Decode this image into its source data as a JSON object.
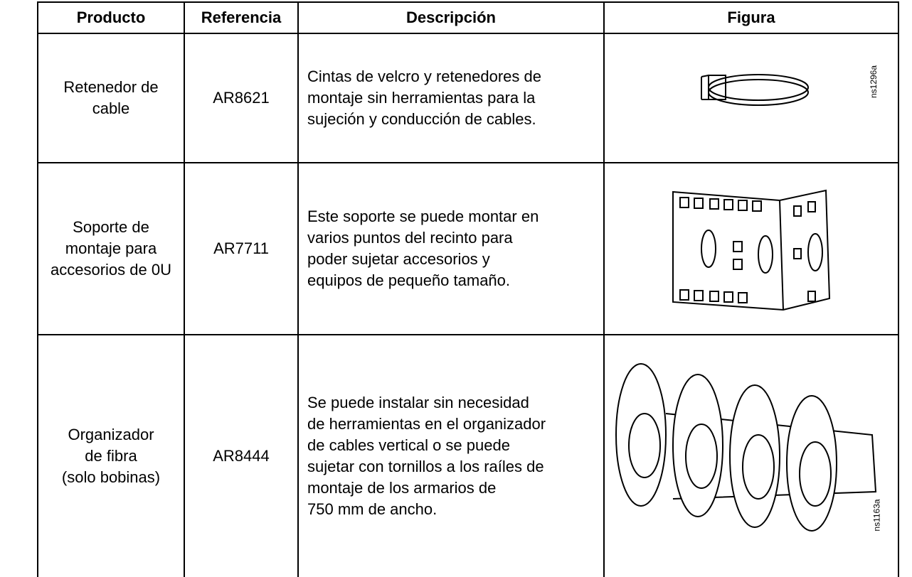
{
  "table": {
    "header": [
      "Producto",
      "Referencia",
      "Descripción",
      "Figura"
    ],
    "rows": [
      {
        "product": "Retenedor de\ncable",
        "reference": "AR8621",
        "description": "Cintas de velcro y retenedores de\nmontaje sin herramientas para la\nsujeción y conducción de cables.",
        "figure_label": "ns1296a"
      },
      {
        "product": "Soporte de\nmontaje para\naccesorios de 0U",
        "reference": "AR7711",
        "description": "Este soporte se puede montar en\nvarios puntos del recinto para\npoder sujetar accesorios y\nequipos de pequeño tamaño."
      },
      {
        "product": "Organizador\nde fibra\n(solo bobinas)",
        "reference": "AR8444",
        "description": "Se puede instalar sin necesidad\nde herramientas en el organizador\nde cables vertical o se puede\nsujetar con tornillos a los raíles de\nmontaje de los armarios de\n750 mm de ancho.",
        "figure_label": "ns1163a"
      }
    ]
  }
}
